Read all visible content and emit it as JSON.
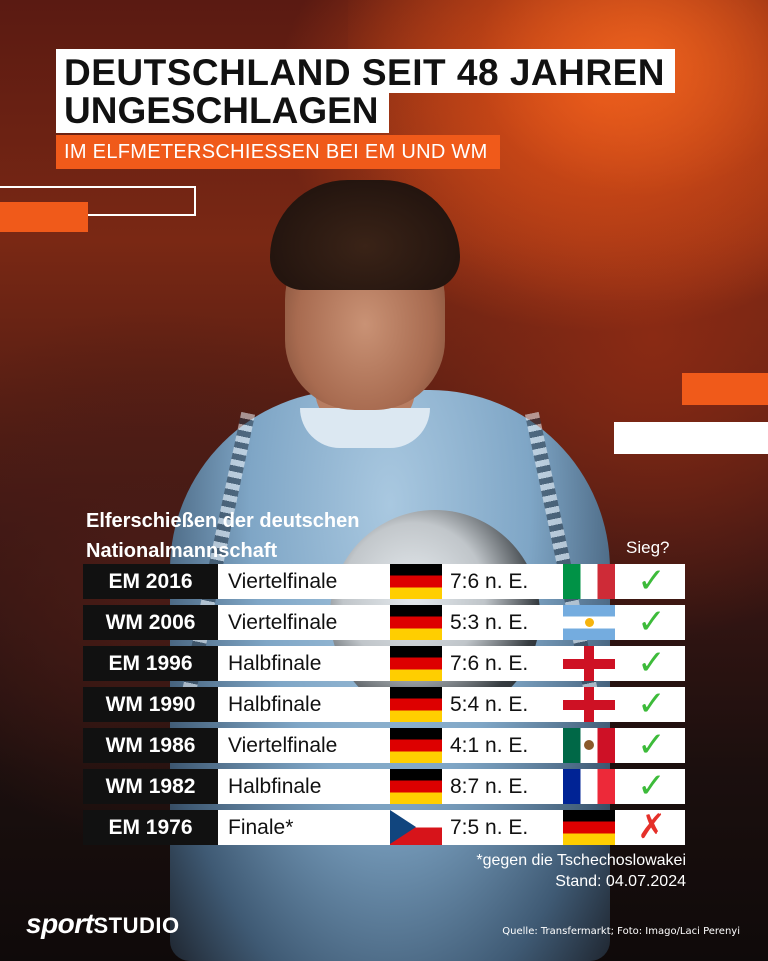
{
  "header": {
    "title_line1": "DEUTSCHLAND SEIT 48 JAHREN",
    "title_line2": "UNGESCHLAGEN",
    "subtitle": "IM ELFMETERSCHIESSEN BEI EM UND WM"
  },
  "table": {
    "title_line1": "Elferschießen der deutschen",
    "title_line2": "Nationalmannschaft",
    "result_header": "Sieg?",
    "rows": [
      {
        "tournament": "EM 2016",
        "round": "Viertelfinale",
        "score": "7:6 n. E.",
        "opponent_flag": "italy-flag",
        "won": true
      },
      {
        "tournament": "WM 2006",
        "round": "Viertelfinale",
        "score": "5:3 n. E.",
        "opponent_flag": "argentina-flag",
        "won": true
      },
      {
        "tournament": "EM 1996",
        "round": "Halbfinale",
        "score": "7:6 n. E.",
        "opponent_flag": "england-flag",
        "won": true
      },
      {
        "tournament": "WM 1990",
        "round": "Halbfinale",
        "score": "5:4 n. E.",
        "opponent_flag": "england-flag",
        "won": true
      },
      {
        "tournament": "WM 1986",
        "round": "Viertelfinale",
        "score": "4:1 n. E.",
        "opponent_flag": "mexico-flag",
        "won": true
      },
      {
        "tournament": "WM 1982",
        "round": "Halbfinale",
        "score": "8:7 n. E.",
        "opponent_flag": "france-flag",
        "won": true
      },
      {
        "tournament": "EM 1976",
        "round": "Finale*",
        "score": "7:5 n. E.",
        "opponent_flag": "czechoslovakia-flag",
        "won": false
      }
    ],
    "result_icons": {
      "win": "✓",
      "loss": "✗"
    }
  },
  "footnote": {
    "note": "*gegen die Tschechoslowakei",
    "date": "Stand: 04.07.2024"
  },
  "branding": {
    "logo_part1": "sport",
    "logo_part2": "STUDIO",
    "source": "Quelle: Transfermarkt; Foto: Imago/Laci Perenyi"
  },
  "colors": {
    "accent": "#f05a1a",
    "win": "#3dbb3a",
    "loss": "#e5302a"
  }
}
